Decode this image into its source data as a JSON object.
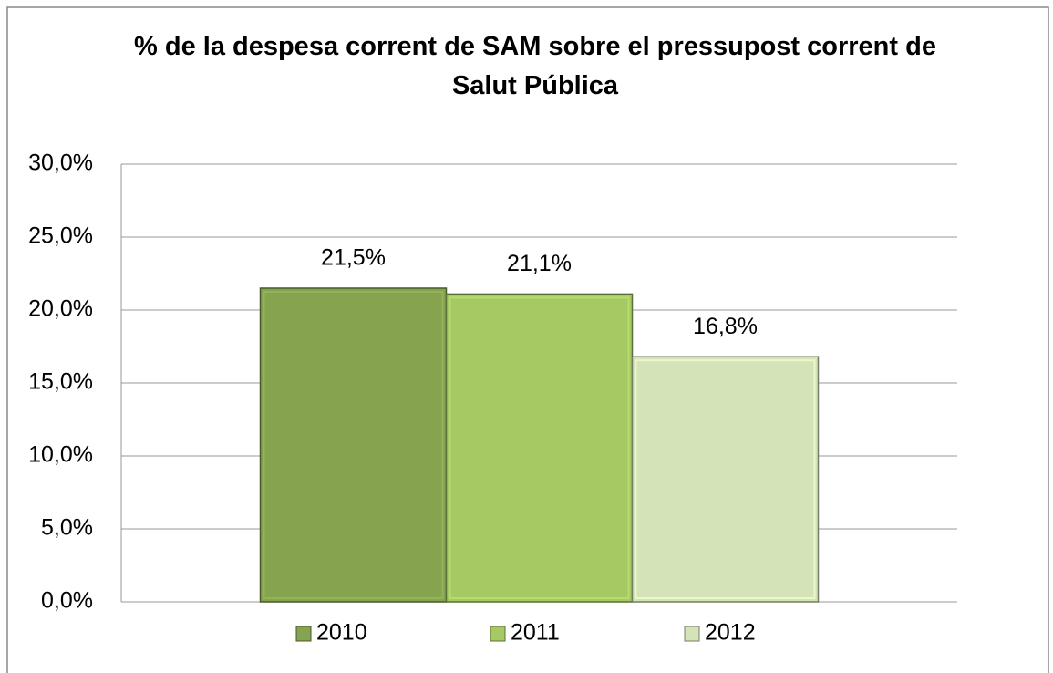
{
  "chart_data": {
    "type": "bar",
    "title": "% de la despesa corrent de SAM sobre el pressupost corrent de Salut Pública",
    "categories": [
      null
    ],
    "series": [
      {
        "name": "2010",
        "color": "#86a34f",
        "values": [
          21.5
        ],
        "value_labels": [
          "21,5%"
        ]
      },
      {
        "name": "2011",
        "color": "#a6c964",
        "values": [
          21.1
        ],
        "value_labels": [
          "21,1%"
        ]
      },
      {
        "name": "2012",
        "color": "#d4e3b8",
        "values": [
          16.8
        ],
        "value_labels": [
          "16,8%"
        ]
      }
    ],
    "ylim": [
      0,
      30
    ],
    "yticks": [
      {
        "value": 0,
        "label": "0,0%"
      },
      {
        "value": 5,
        "label": "5,0%"
      },
      {
        "value": 10,
        "label": "10,0%"
      },
      {
        "value": 15,
        "label": "15,0%"
      },
      {
        "value": 20,
        "label": "20,0%"
      },
      {
        "value": 25,
        "label": "25,0%"
      },
      {
        "value": 30,
        "label": "30,0%"
      }
    ],
    "grid": true,
    "legend": "bottom"
  }
}
